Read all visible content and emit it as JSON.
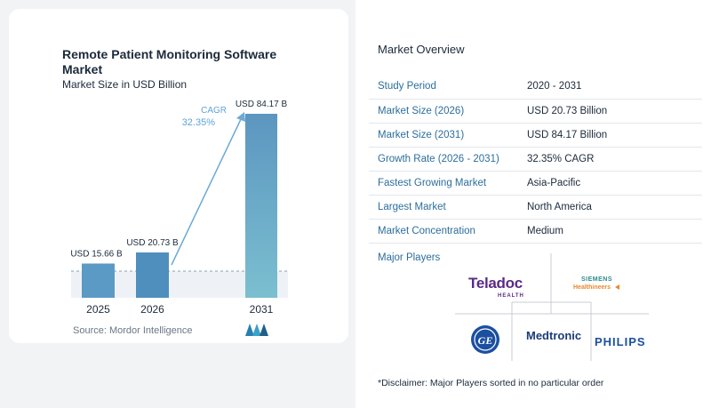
{
  "chart_data": {
    "type": "bar",
    "title": "Remote Patient Monitoring Software Market",
    "subtitle": "Market Size in USD Billion",
    "categories": [
      "2025",
      "2026",
      "2031"
    ],
    "values": [
      15.66,
      20.73,
      84.17
    ],
    "value_labels": [
      "USD 15.66 B",
      "USD 20.73 B",
      "USD 84.17 B"
    ],
    "cagr_label": "CAGR",
    "cagr_value": "32.35%",
    "colors": {
      "bar_2025": "#5b9ac4",
      "bar_2026": "#4f8fbd",
      "bar_2031_top": "#5c96c0",
      "bar_2031_bottom": "#7bbfd0",
      "arrow": "#6aaad8",
      "cagr_text": "#5ea4d6"
    }
  },
  "source": "Source:  Mordor Intelligence",
  "source_logo_icon": "mordor-intelligence-logo-icon",
  "overview": {
    "title": "Market Overview",
    "rows": [
      {
        "key": "Study Period",
        "value": "2020 - 2031"
      },
      {
        "key": "Market Size (2026)",
        "value": "USD 20.73 Billion"
      },
      {
        "key": "Market Size (2031)",
        "value": "USD 84.17 Billion"
      },
      {
        "key": "Growth Rate (2026 - 2031)",
        "value": "32.35% CAGR"
      },
      {
        "key": "Fastest Growing Market",
        "value": "Asia-Pacific"
      },
      {
        "key": "Largest Market",
        "value": "North America"
      },
      {
        "key": "Market Concentration",
        "value": "Medium"
      }
    ]
  },
  "players": {
    "title": "Major Players",
    "teladoc": "Teladoc",
    "teladoc_sub": "HEALTH",
    "siemens": "SIEMENS",
    "healthineers": "Healthineers",
    "ge": "GE",
    "medtronic": "Medtronic",
    "philips": "PHILIPS"
  },
  "disclaimer": "*Disclaimer: Major Players sorted in no particular order"
}
